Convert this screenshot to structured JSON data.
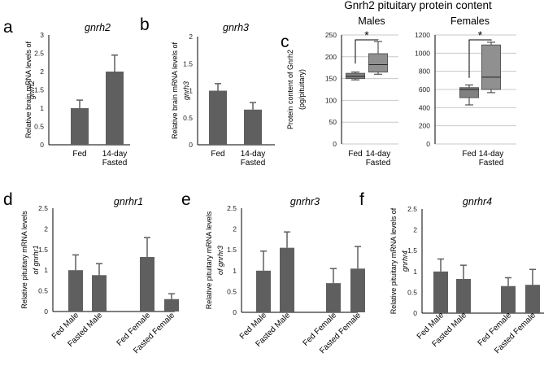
{
  "figure": {
    "c_heading": "Gnrh2 pituitary protein content"
  },
  "chart_data": [
    {
      "panel": "a",
      "type": "bar",
      "title": "gnrh2",
      "ylabel_1": "Relative brain mRNA levels of",
      "ylabel_2": "gnrh2",
      "categories": [
        "Fed",
        "14-day Fasted"
      ],
      "category_lines": [
        [
          "Fed"
        ],
        [
          "14-day",
          "Fasted"
        ]
      ],
      "values": [
        1.0,
        2.0
      ],
      "errors": [
        0.22,
        0.45
      ],
      "ylim": [
        0,
        3
      ],
      "yticks": [
        "0",
        "0.5",
        "1",
        "1.5",
        "2",
        "2.5",
        "3"
      ],
      "tick_values": [
        0,
        0.5,
        1,
        1.5,
        2,
        2.5,
        3
      ],
      "rotate_labels": false
    },
    {
      "panel": "b",
      "type": "bar",
      "title": "gnrh3",
      "ylabel_1": "Relative brain mRNA levels of",
      "ylabel_2": "gnrh3",
      "categories": [
        "Fed",
        "14-day Fasted"
      ],
      "category_lines": [
        [
          "Fed"
        ],
        [
          "14-day",
          "Fasted"
        ]
      ],
      "values": [
        1.0,
        0.65
      ],
      "errors": [
        0.13,
        0.13
      ],
      "ylim": [
        0,
        2
      ],
      "yticks": [
        "0",
        "0.5",
        "1",
        "1.5",
        "2"
      ],
      "tick_values": [
        0,
        0.5,
        1,
        1.5,
        2
      ],
      "rotate_labels": false
    },
    {
      "panel": "c-males",
      "type": "box",
      "title": "Males",
      "ylabel_1": "Protein content of Gnrh2",
      "ylabel_2": "(pg/pituitary)",
      "categories": [
        "Fed",
        "14-day Fasted"
      ],
      "category_lines": [
        [
          "Fed"
        ],
        [
          "14-day",
          "Fasted"
        ]
      ],
      "boxes": [
        {
          "min": 147,
          "q1": 150,
          "median": 155,
          "q3": 162,
          "max": 165
        },
        {
          "min": 160,
          "q1": 165,
          "median": 182,
          "q3": 207,
          "max": 235
        }
      ],
      "ylim": [
        0,
        250
      ],
      "yticks": [
        "0",
        "50",
        "100",
        "150",
        "200",
        "250"
      ],
      "tick_values": [
        0,
        50,
        100,
        150,
        200,
        250
      ],
      "significance": "*"
    },
    {
      "panel": "c-females",
      "type": "box",
      "title": "Females",
      "categories": [
        "Fed",
        "14-day Fasted"
      ],
      "category_lines": [
        [
          "Fed"
        ],
        [
          "14-day",
          "Fasted"
        ]
      ],
      "boxes": [
        {
          "min": 430,
          "q1": 510,
          "median": 600,
          "q3": 620,
          "max": 650
        },
        {
          "min": 565,
          "q1": 600,
          "median": 735,
          "q3": 1090,
          "max": 1120
        }
      ],
      "ylim": [
        0,
        1200
      ],
      "yticks": [
        "0",
        "200",
        "400",
        "600",
        "800",
        "1000",
        "1200"
      ],
      "tick_values": [
        0,
        200,
        400,
        600,
        800,
        1000,
        1200
      ],
      "significance": "*"
    },
    {
      "panel": "d",
      "type": "bar",
      "title": "gnrhr1",
      "ylabel_1": "Relative pituitary mRNA levels",
      "ylabel_2": "of gnrhr1",
      "categories": [
        "Fed Male",
        "Fasted Male",
        "Fed Female",
        "Fasted Female"
      ],
      "values": [
        1.0,
        0.88,
        1.32,
        0.3
      ],
      "errors": [
        0.37,
        0.28,
        0.47,
        0.13
      ],
      "ylim": [
        0,
        2.5
      ],
      "yticks": [
        "0",
        "0.5",
        "1",
        "1.5",
        "2",
        "2.5"
      ],
      "tick_values": [
        0,
        0.5,
        1,
        1.5,
        2,
        2.5
      ],
      "rotate_labels": true
    },
    {
      "panel": "e",
      "type": "bar",
      "title": "gnrhr3",
      "ylabel_1": "Relative pituitary  mRNA levels",
      "ylabel_2": "of gnrhr3",
      "categories": [
        "Fed Male",
        "Fasted Male",
        "Fed Female",
        "Fasted Female"
      ],
      "values": [
        1.0,
        1.55,
        0.7,
        1.05
      ],
      "errors": [
        0.47,
        0.38,
        0.35,
        0.53
      ],
      "ylim": [
        0,
        2.5
      ],
      "yticks": [
        "0",
        "0.5",
        "1",
        "1.5",
        "2",
        "2.5"
      ],
      "tick_values": [
        0,
        0.5,
        1,
        1.5,
        2,
        2.5
      ],
      "rotate_labels": true
    },
    {
      "panel": "f",
      "type": "bar",
      "title": "gnrhr4",
      "ylabel_1": "Relative pituitary mRNA levels of",
      "ylabel_2": "gnrhr4",
      "categories": [
        "Fed Male",
        "Fasted Male",
        "Fed Female",
        "Fasted Female"
      ],
      "values": [
        1.0,
        0.82,
        0.65,
        0.68
      ],
      "errors": [
        0.3,
        0.33,
        0.2,
        0.37
      ],
      "ylim": [
        0,
        2.5
      ],
      "yticks": [
        "0",
        "0.5",
        "1",
        "1.5",
        "2",
        "2.5"
      ],
      "tick_values": [
        0,
        0.5,
        1,
        1.5,
        2,
        2.5
      ],
      "rotate_labels": true
    }
  ],
  "colors": {
    "bar": "#5f5f5f",
    "box_fed": "#808080",
    "box_fasted": "#909090",
    "axis": "#000000",
    "grid": "#c8c8c8"
  }
}
